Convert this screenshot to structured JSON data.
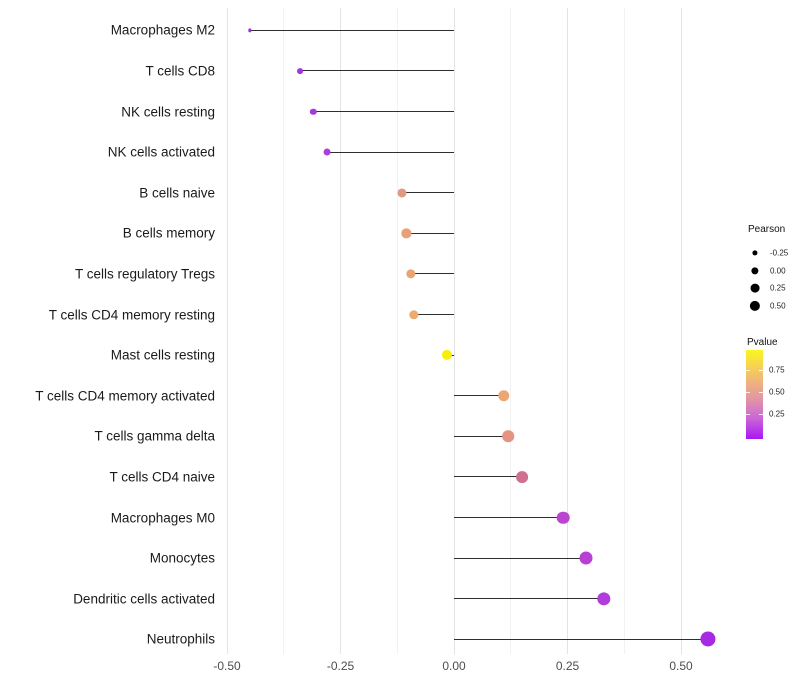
{
  "chart_data": {
    "type": "lollipop",
    "title": "",
    "xlabel": "",
    "ylabel": "",
    "x_ticks": [
      "-0.50",
      "-0.25",
      "0.00",
      "0.25",
      "0.50"
    ],
    "x_tick_values": [
      -0.5,
      -0.25,
      0,
      0.25,
      0.5
    ],
    "x_minor_values": [
      -0.375,
      -0.125,
      0.125,
      0.375
    ],
    "xlim": [
      -0.51,
      0.61
    ],
    "grid": "vertical major and minor gridlines only, white background, no axis lines",
    "legend_position": "right",
    "categories": [
      "Macrophages M2",
      "T cells CD8",
      "NK cells resting",
      "NK cells activated",
      "B cells naive",
      "B cells memory",
      "T cells regulatory  Tregs",
      "T cells CD4 memory resting",
      "Mast cells resting",
      "T cells CD4 memory activated",
      "T cells gamma delta",
      "T cells CD4 naive",
      "Macrophages M0",
      "Monocytes",
      "Dendritic cells activated",
      "Neutrophils"
    ],
    "points": [
      {
        "label": "Macrophages M2",
        "pearson": -0.45,
        "pvalue": 0.01,
        "color": "#9531db"
      },
      {
        "label": "T cells CD8",
        "pearson": -0.34,
        "pvalue": 0.03,
        "color": "#a037d9"
      },
      {
        "label": "NK cells resting",
        "pearson": -0.31,
        "pvalue": 0.04,
        "color": "#a43bd7"
      },
      {
        "label": "NK cells activated",
        "pearson": -0.28,
        "pvalue": 0.06,
        "color": "#ab3fd7"
      },
      {
        "label": "B cells naive",
        "pearson": -0.115,
        "pvalue": 0.45,
        "color": "#de9a82"
      },
      {
        "label": "B cells memory",
        "pearson": -0.105,
        "pvalue": 0.5,
        "color": "#e7a177"
      },
      {
        "label": "T cells regulatory  Tregs",
        "pearson": -0.095,
        "pvalue": 0.53,
        "color": "#e9a473"
      },
      {
        "label": "T cells CD4 memory resting",
        "pearson": -0.088,
        "pvalue": 0.56,
        "color": "#edaa71"
      },
      {
        "label": "Mast cells resting",
        "pearson": -0.015,
        "pvalue": 0.92,
        "color": "#f7ee0d"
      },
      {
        "label": "T cells CD4 memory activated",
        "pearson": 0.11,
        "pvalue": 0.5,
        "color": "#eca671"
      },
      {
        "label": "T cells gamma delta",
        "pearson": 0.12,
        "pvalue": 0.44,
        "color": "#e59484"
      },
      {
        "label": "T cells CD4 naive",
        "pearson": 0.15,
        "pvalue": 0.32,
        "color": "#d0708f"
      },
      {
        "label": "Macrophages M0",
        "pearson": 0.24,
        "pvalue": 0.1,
        "color": "#bb45cf"
      },
      {
        "label": "Monocytes",
        "pearson": 0.29,
        "pvalue": 0.07,
        "color": "#b840d4"
      },
      {
        "label": "Dendritic cells activated",
        "pearson": 0.33,
        "pvalue": 0.05,
        "color": "#b13bdc"
      },
      {
        "label": "Neutrophils",
        "pearson": 0.56,
        "pvalue": 0.005,
        "color": "#a629e3"
      }
    ],
    "legend": {
      "size": {
        "title": "Pearson",
        "entries": [
          {
            "label": "-0.25",
            "value": -0.25
          },
          {
            "label": "0.00",
            "value": 0.0
          },
          {
            "label": "0.25",
            "value": 0.25
          },
          {
            "label": "0.50",
            "value": 0.5
          }
        ],
        "dot_color": "#000000"
      },
      "color": {
        "title": "Pvalue",
        "labels": [
          "0.75",
          "0.50",
          "0.25"
        ],
        "gradient": [
          {
            "color": "#fbf521",
            "pos": 0
          },
          {
            "color": "#f2be70",
            "pos": 30
          },
          {
            "color": "#e295a4",
            "pos": 55
          },
          {
            "color": "#cb66d9",
            "pos": 77
          },
          {
            "color": "#a916f2",
            "pos": 100
          }
        ],
        "meaning": "yellow = high p-value, purple = low p-value"
      }
    },
    "colors": {
      "stick": "#2f2f2f",
      "grid_major": "#e4e4e4",
      "grid_minor": "#f2f2f2",
      "axis_text": "#4d4d4d",
      "label_text": "#1a1a1a"
    }
  }
}
